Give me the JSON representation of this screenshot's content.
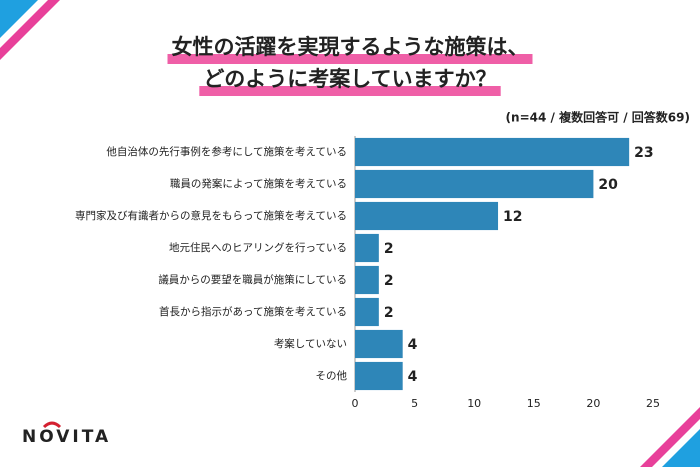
{
  "chart_data": {
    "type": "bar",
    "orientation": "horizontal",
    "title": [
      "女性の活躍を実現するような施策は、",
      "どのように考案していますか？"
    ],
    "note": "(n=44 / 複数回答可 / 回答数69)",
    "categories": [
      "他自治体の先行事例を参考にして施策を考えている",
      "職員の発案によって施策を考えている",
      "専門家及び有識者からの意見をもらって施策を考えている",
      "地元住民へのヒアリングを行っている",
      "議員からの要望を職員が施策にしている",
      "首長から指示があって施策を考えている",
      "考案していない",
      "その他"
    ],
    "values": [
      23,
      20,
      12,
      2,
      2,
      2,
      4,
      4
    ],
    "color": "#2e86b8",
    "xlim": [
      0,
      25
    ],
    "xticks": [
      0,
      5,
      10,
      15,
      20,
      25
    ],
    "grid": false
  },
  "logo": "NOVITA"
}
